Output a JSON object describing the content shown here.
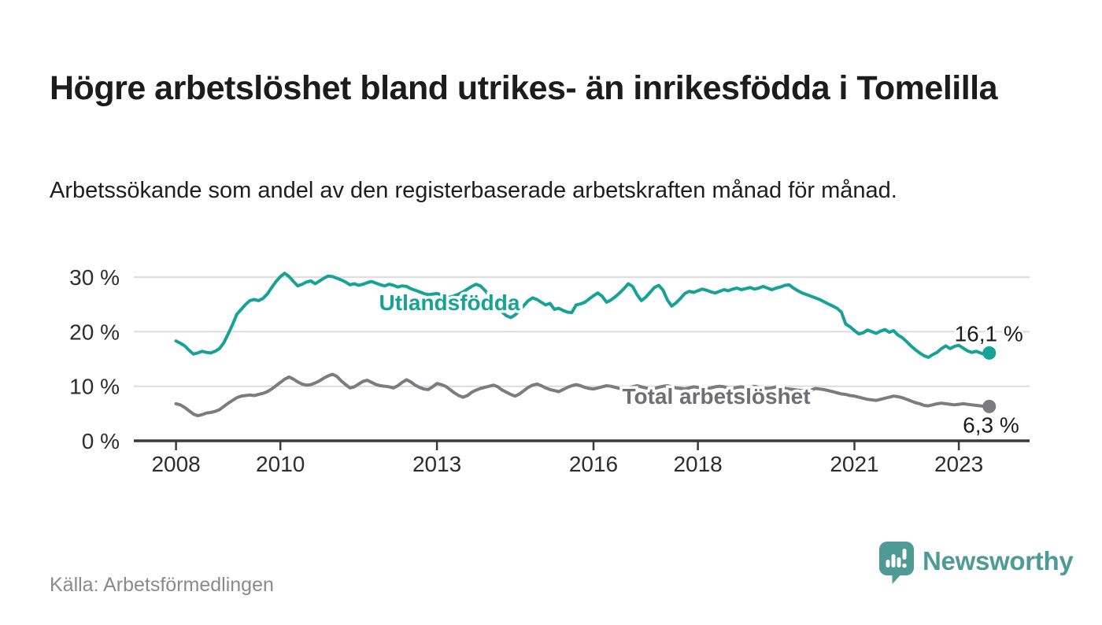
{
  "title": "Högre arbetslöshet bland utrikes- än inrikesfödda i Tomelilla",
  "subtitle": "Arbetssökande som andel av den registerbaserade arbetskraften månad för månad.",
  "source": "Källa: Arbetsförmedlingen",
  "brand": {
    "name": "Newsworthy",
    "color": "#4E9A94"
  },
  "chart_data": {
    "type": "line",
    "title": "Högre arbetslöshet bland utrikes- än inrikesfödda i Tomelilla",
    "subtitle": "Arbetssökande som andel av den registerbaserade arbetskraften månad för månad.",
    "frequency": "monthly",
    "x_start": "2008-01",
    "x_end": "2023-08",
    "xlabel": "",
    "ylabel": "",
    "ylim": [
      0,
      32
    ],
    "grid": "horizontal",
    "legend": "inline-labels",
    "xticks": [
      2008,
      2010,
      2013,
      2016,
      2018,
      2021,
      2023
    ],
    "yticks": [
      {
        "value": 0,
        "label": "0 %"
      },
      {
        "value": 10,
        "label": "10 %"
      },
      {
        "value": 20,
        "label": "20 %"
      },
      {
        "value": 30,
        "label": "30 %"
      }
    ],
    "series": [
      {
        "name": "Utlandsfödda",
        "color": "#16A295",
        "end_value": 16.1,
        "end_label": "16,1 %",
        "values": [
          18.3,
          17.9,
          17.4,
          16.6,
          15.9,
          16.1,
          16.4,
          16.2,
          16.1,
          16.4,
          16.9,
          18.0,
          19.6,
          21.3,
          23.2,
          24.1,
          25.0,
          25.7,
          25.9,
          25.7,
          26.1,
          26.9,
          28.1,
          29.2,
          30.1,
          30.7,
          30.1,
          29.2,
          28.4,
          28.7,
          29.1,
          29.3,
          28.8,
          29.3,
          29.8,
          30.2,
          30.1,
          29.8,
          29.5,
          29.1,
          28.6,
          28.8,
          28.5,
          28.7,
          29.0,
          29.2,
          28.9,
          28.6,
          28.4,
          28.7,
          28.5,
          28.2,
          28.4,
          28.3,
          27.9,
          27.6,
          27.3,
          27.0,
          26.8,
          26.9,
          27.0,
          26.8,
          26.5,
          26.3,
          26.6,
          26.9,
          27.3,
          27.8,
          28.3,
          28.7,
          28.4,
          27.6,
          26.7,
          25.8,
          24.7,
          23.6,
          22.9,
          22.6,
          23.1,
          23.9,
          24.8,
          25.7,
          26.2,
          25.9,
          25.4,
          24.9,
          25.2,
          24.1,
          24.3,
          23.9,
          23.6,
          23.5,
          24.9,
          25.1,
          25.4,
          26.0,
          26.6,
          27.1,
          26.5,
          25.4,
          25.8,
          26.4,
          27.1,
          27.9,
          28.8,
          28.3,
          26.8,
          25.7,
          26.3,
          27.2,
          28.1,
          28.5,
          27.6,
          25.8,
          24.7,
          25.3,
          26.1,
          27.0,
          27.4,
          27.2,
          27.5,
          27.8,
          27.6,
          27.3,
          27.1,
          27.4,
          27.7,
          27.5,
          27.8,
          28.0,
          27.7,
          27.9,
          28.1,
          27.8,
          28.0,
          28.3,
          28.0,
          27.7,
          28.0,
          28.2,
          28.5,
          28.6,
          28.0,
          27.5,
          27.1,
          26.8,
          26.5,
          26.2,
          25.9,
          25.5,
          25.1,
          24.7,
          24.3,
          23.6,
          21.4,
          20.9,
          20.2,
          19.6,
          19.8,
          20.3,
          20.0,
          19.7,
          20.1,
          20.4,
          19.9,
          20.2,
          19.4,
          18.9,
          18.2,
          17.4,
          16.7,
          16.1,
          15.6,
          15.3,
          15.8,
          16.2,
          16.9,
          17.4,
          16.9,
          17.3,
          17.5,
          17.0,
          16.5,
          16.2,
          16.4,
          16.1,
          15.8,
          16.1
        ]
      },
      {
        "name": "Total arbetslöshet",
        "color": "#7C7C80",
        "end_value": 6.3,
        "end_label": "6,3 %",
        "values": [
          6.8,
          6.6,
          6.1,
          5.5,
          4.9,
          4.6,
          4.8,
          5.1,
          5.2,
          5.4,
          5.7,
          6.3,
          6.9,
          7.4,
          7.9,
          8.2,
          8.3,
          8.4,
          8.3,
          8.5,
          8.7,
          9.0,
          9.5,
          10.1,
          10.7,
          11.3,
          11.7,
          11.3,
          10.8,
          10.4,
          10.2,
          10.3,
          10.6,
          11.0,
          11.5,
          11.9,
          12.2,
          11.8,
          11.0,
          10.3,
          9.7,
          9.9,
          10.4,
          10.9,
          11.1,
          10.7,
          10.3,
          10.1,
          10.0,
          9.9,
          9.7,
          10.1,
          10.7,
          11.2,
          10.8,
          10.2,
          9.8,
          9.5,
          9.4,
          9.9,
          10.5,
          10.3,
          10.0,
          9.4,
          8.8,
          8.3,
          8.0,
          8.3,
          8.9,
          9.3,
          9.6,
          9.8,
          10.0,
          10.2,
          9.9,
          9.3,
          8.9,
          8.5,
          8.2,
          8.6,
          9.2,
          9.8,
          10.2,
          10.4,
          10.1,
          9.7,
          9.4,
          9.2,
          9.0,
          9.4,
          9.8,
          10.1,
          10.3,
          10.1,
          9.8,
          9.6,
          9.5,
          9.7,
          9.9,
          10.1,
          10.0,
          9.8,
          9.6,
          9.5,
          9.7,
          9.9,
          10.1,
          9.9,
          9.7,
          9.5,
          9.6,
          9.8,
          10.0,
          10.1,
          9.9,
          9.7,
          9.6,
          9.5,
          9.7,
          9.9,
          9.8,
          9.6,
          9.5,
          9.7,
          9.9,
          10.0,
          9.9,
          9.7,
          9.6,
          9.8,
          9.9,
          9.8,
          9.9,
          10.0,
          9.8,
          9.7,
          9.6,
          9.7,
          9.9,
          9.8,
          9.6,
          9.5,
          9.4,
          9.3,
          9.2,
          9.1,
          9.3,
          9.6,
          9.5,
          9.4,
          9.2,
          9.0,
          8.8,
          8.6,
          8.5,
          8.3,
          8.2,
          8.0,
          7.8,
          7.6,
          7.5,
          7.4,
          7.6,
          7.8,
          8.0,
          8.2,
          8.1,
          7.9,
          7.6,
          7.3,
          7.0,
          6.8,
          6.5,
          6.4,
          6.6,
          6.8,
          6.9,
          6.8,
          6.7,
          6.6,
          6.7,
          6.8,
          6.7,
          6.6,
          6.5,
          6.4,
          6.3,
          6.3
        ]
      }
    ],
    "colors": {
      "grid": "#dcdcdc",
      "axis": "#3a3a3a",
      "tick_text": "#2d2d2d",
      "value_label_text": "#1b1b1b"
    }
  }
}
